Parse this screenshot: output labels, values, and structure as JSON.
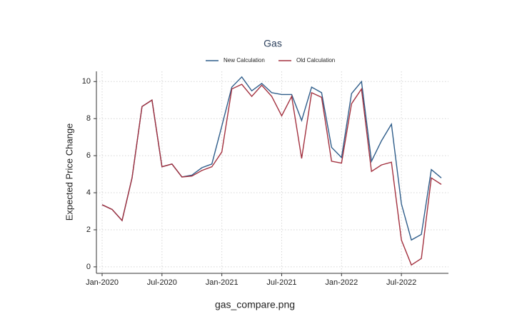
{
  "chart_data": {
    "type": "line",
    "title": "Gas",
    "ylabel": "Expected Price Change",
    "caption": "gas_compare.png",
    "x": [
      "2020-01",
      "2020-02",
      "2020-03",
      "2020-04",
      "2020-05",
      "2020-06",
      "2020-07",
      "2020-08",
      "2020-09",
      "2020-10",
      "2020-11",
      "2020-12",
      "2021-01",
      "2021-02",
      "2021-03",
      "2021-04",
      "2021-05",
      "2021-06",
      "2021-07",
      "2021-08",
      "2021-09",
      "2021-10",
      "2021-11",
      "2021-12",
      "2022-01",
      "2022-02",
      "2022-03",
      "2022-04",
      "2022-05",
      "2022-06",
      "2022-07",
      "2022-08",
      "2022-09",
      "2022-10",
      "2022-11"
    ],
    "series": [
      {
        "name": "New Calculation",
        "color": "#2f5d8a",
        "values": [
          3.35,
          3.1,
          2.5,
          4.8,
          8.65,
          9.0,
          5.4,
          5.55,
          4.85,
          4.95,
          5.35,
          5.55,
          7.6,
          9.7,
          10.25,
          9.5,
          9.9,
          9.4,
          9.3,
          9.3,
          7.9,
          9.7,
          9.4,
          6.45,
          5.9,
          9.35,
          10.0,
          5.7,
          6.8,
          7.7,
          3.4,
          1.45,
          1.75,
          5.25,
          4.8
        ]
      },
      {
        "name": "Old Calculation",
        "color": "#a3313f",
        "values": [
          3.35,
          3.1,
          2.5,
          4.8,
          8.65,
          9.0,
          5.4,
          5.55,
          4.85,
          4.9,
          5.2,
          5.4,
          6.2,
          9.6,
          9.85,
          9.2,
          9.8,
          9.2,
          8.15,
          9.2,
          5.85,
          9.4,
          9.15,
          5.7,
          5.6,
          8.8,
          9.6,
          5.15,
          5.5,
          5.65,
          1.45,
          0.1,
          0.45,
          4.8,
          4.45
        ]
      }
    ],
    "xticks": [
      {
        "value": "2020-01",
        "label": "Jan-2020"
      },
      {
        "value": "2020-07",
        "label": "Jul-2020"
      },
      {
        "value": "2021-01",
        "label": "Jan-2021"
      },
      {
        "value": "2021-07",
        "label": "Jul-2021"
      },
      {
        "value": "2022-01",
        "label": "Jan-2022"
      },
      {
        "value": "2022-07",
        "label": "Jul-2022"
      }
    ],
    "ylim": [
      -0.35,
      10.55
    ],
    "yticks": [
      0,
      2,
      4,
      6,
      8,
      10
    ],
    "grid": true,
    "legend": "top"
  }
}
